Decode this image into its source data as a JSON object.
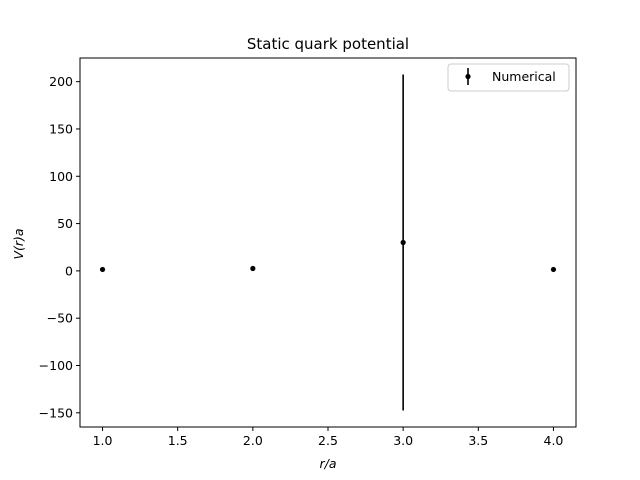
{
  "chart_data": {
    "type": "scatter",
    "title": "Static quark potential",
    "xlabel": "r/a",
    "ylabel": "V(r)a",
    "xlim": [
      0.85,
      4.15
    ],
    "ylim": [
      -165,
      225
    ],
    "xticks": [
      1.0,
      1.5,
      2.0,
      2.5,
      3.0,
      3.5,
      4.0
    ],
    "xtick_labels": [
      "1.0",
      "1.5",
      "2.0",
      "2.5",
      "3.0",
      "3.5",
      "4.0"
    ],
    "yticks": [
      -150,
      -100,
      -50,
      0,
      50,
      100,
      150,
      200
    ],
    "ytick_labels": [
      "−150",
      "−100",
      "−50",
      "0",
      "50",
      "100",
      "150",
      "200"
    ],
    "grid": false,
    "legend_position": "top-right",
    "series": [
      {
        "name": "Numerical",
        "color": "#000000",
        "marker": "dot",
        "x": [
          1.0,
          2.0,
          3.0,
          4.0
        ],
        "y": [
          1.5,
          2.5,
          30.0,
          1.5
        ],
        "yerr": [
          0.0,
          0.0,
          177.5,
          0.0
        ]
      }
    ]
  }
}
